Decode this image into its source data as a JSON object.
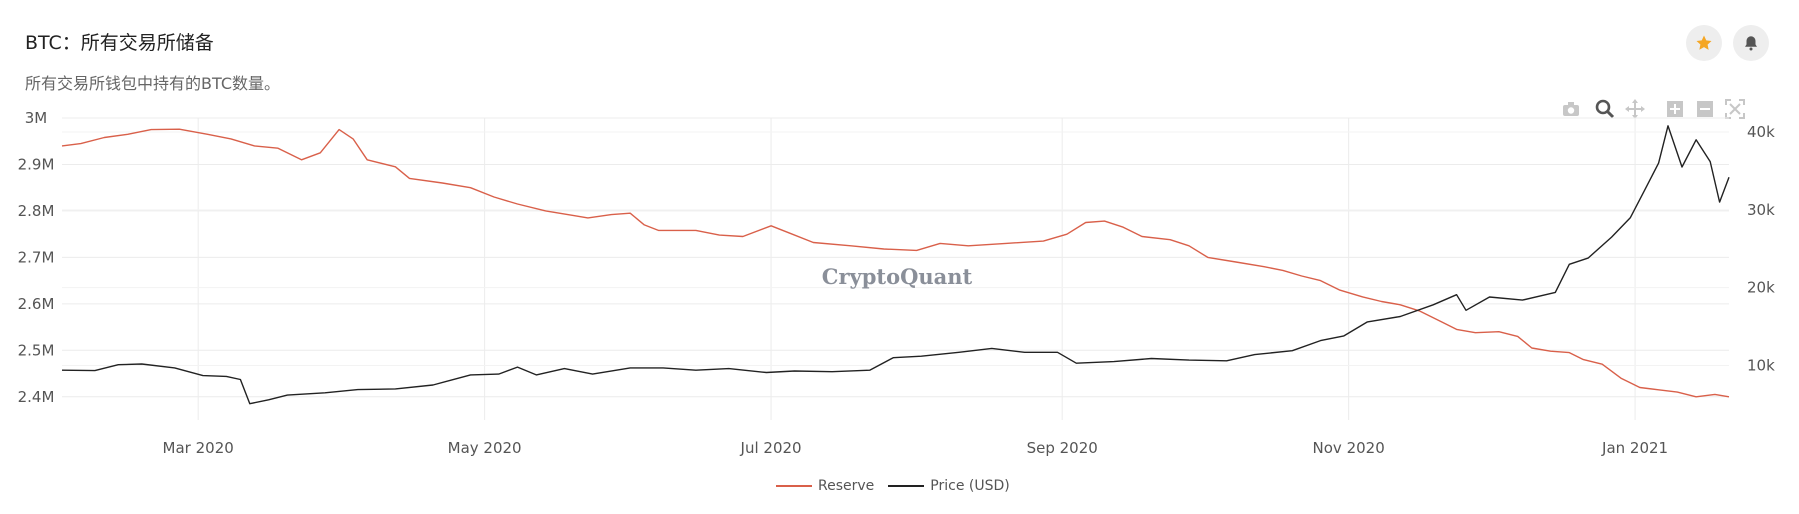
{
  "header": {
    "title": "BTC：所有交易所储备",
    "subtitle": "所有交易所钱包中持有的BTC数量。",
    "favorite_icon": "star-icon",
    "alert_icon": "bell-icon"
  },
  "toolbar": {
    "icons": [
      "camera-icon",
      "zoom-icon",
      "pan-icon",
      "zoom-in-icon",
      "zoom-out-icon",
      "autoscale-icon"
    ]
  },
  "watermark": "CryptoQuant",
  "colors": {
    "reserve": "#d9604a",
    "price": "#222222",
    "star": "#f5a623",
    "grid": "#ececec",
    "axis_text": "#555555"
  },
  "chart_data": {
    "type": "line",
    "title": "BTC：所有交易所储备",
    "x_start": "2020-02-01",
    "x_end": "2021-01-21",
    "x_ticks": [
      {
        "date": "2020-03-01",
        "label": "Mar 2020"
      },
      {
        "date": "2020-05-01",
        "label": "May 2020"
      },
      {
        "date": "2020-07-01",
        "label": "Jul 2020"
      },
      {
        "date": "2020-09-01",
        "label": "Sep 2020"
      },
      {
        "date": "2020-11-01",
        "label": "Nov 2020"
      },
      {
        "date": "2021-01-01",
        "label": "Jan 2021"
      }
    ],
    "y_left": {
      "label": "Reserve",
      "range": [
        2350000,
        3000000
      ],
      "ticks": [
        {
          "value": 2400000,
          "label": "2.4M"
        },
        {
          "value": 2500000,
          "label": "2.5M"
        },
        {
          "value": 2600000,
          "label": "2.6M"
        },
        {
          "value": 2700000,
          "label": "2.7M"
        },
        {
          "value": 2800000,
          "label": "2.8M"
        },
        {
          "value": 2900000,
          "label": "2.9M"
        },
        {
          "value": 3000000,
          "label": "3M"
        }
      ]
    },
    "y_right": {
      "label": "Price (USD)",
      "range": [
        3000,
        41800
      ],
      "ticks": [
        {
          "value": 10000,
          "label": "10k"
        },
        {
          "value": 20000,
          "label": "20k"
        },
        {
          "value": 30000,
          "label": "30k"
        },
        {
          "value": 40000,
          "label": "40k"
        }
      ]
    },
    "series": [
      {
        "name": "Reserve",
        "axis": "left",
        "points": [
          [
            "2020-02-01",
            2940000
          ],
          [
            "2020-02-05",
            2945000
          ],
          [
            "2020-02-10",
            2958000
          ],
          [
            "2020-02-15",
            2965000
          ],
          [
            "2020-02-20",
            2975000
          ],
          [
            "2020-02-26",
            2976000
          ],
          [
            "2020-03-03",
            2965000
          ],
          [
            "2020-03-08",
            2955000
          ],
          [
            "2020-03-13",
            2940000
          ],
          [
            "2020-03-18",
            2935000
          ],
          [
            "2020-03-23",
            2910000
          ],
          [
            "2020-03-27",
            2925000
          ],
          [
            "2020-03-31",
            2975000
          ],
          [
            "2020-04-03",
            2955000
          ],
          [
            "2020-04-06",
            2910000
          ],
          [
            "2020-04-12",
            2895000
          ],
          [
            "2020-04-15",
            2870000
          ],
          [
            "2020-04-22",
            2860000
          ],
          [
            "2020-04-28",
            2850000
          ],
          [
            "2020-05-03",
            2830000
          ],
          [
            "2020-05-08",
            2815000
          ],
          [
            "2020-05-14",
            2800000
          ],
          [
            "2020-05-20",
            2790000
          ],
          [
            "2020-05-23",
            2785000
          ],
          [
            "2020-05-28",
            2792000
          ],
          [
            "2020-06-01",
            2795000
          ],
          [
            "2020-06-04",
            2770000
          ],
          [
            "2020-06-07",
            2758000
          ],
          [
            "2020-06-15",
            2758000
          ],
          [
            "2020-06-20",
            2748000
          ],
          [
            "2020-06-25",
            2745000
          ],
          [
            "2020-07-01",
            2768000
          ],
          [
            "2020-07-05",
            2752000
          ],
          [
            "2020-07-10",
            2732000
          ],
          [
            "2020-07-18",
            2725000
          ],
          [
            "2020-07-25",
            2718000
          ],
          [
            "2020-08-01",
            2715000
          ],
          [
            "2020-08-06",
            2730000
          ],
          [
            "2020-08-12",
            2725000
          ],
          [
            "2020-08-20",
            2730000
          ],
          [
            "2020-08-28",
            2735000
          ],
          [
            "2020-09-02",
            2750000
          ],
          [
            "2020-09-06",
            2775000
          ],
          [
            "2020-09-10",
            2778000
          ],
          [
            "2020-09-14",
            2765000
          ],
          [
            "2020-09-18",
            2745000
          ],
          [
            "2020-09-24",
            2738000
          ],
          [
            "2020-09-28",
            2725000
          ],
          [
            "2020-10-02",
            2700000
          ],
          [
            "2020-10-08",
            2690000
          ],
          [
            "2020-10-14",
            2680000
          ],
          [
            "2020-10-18",
            2672000
          ],
          [
            "2020-10-22",
            2660000
          ],
          [
            "2020-10-26",
            2650000
          ],
          [
            "2020-10-30",
            2630000
          ],
          [
            "2020-11-04",
            2615000
          ],
          [
            "2020-11-08",
            2605000
          ],
          [
            "2020-11-12",
            2598000
          ],
          [
            "2020-11-16",
            2585000
          ],
          [
            "2020-11-21",
            2560000
          ],
          [
            "2020-11-24",
            2545000
          ],
          [
            "2020-11-28",
            2538000
          ],
          [
            "2020-12-03",
            2540000
          ],
          [
            "2020-12-07",
            2530000
          ],
          [
            "2020-12-10",
            2505000
          ],
          [
            "2020-12-14",
            2498000
          ],
          [
            "2020-12-18",
            2495000
          ],
          [
            "2020-12-21",
            2480000
          ],
          [
            "2020-12-25",
            2470000
          ],
          [
            "2020-12-29",
            2440000
          ],
          [
            "2021-01-02",
            2420000
          ],
          [
            "2021-01-06",
            2415000
          ],
          [
            "2021-01-10",
            2410000
          ],
          [
            "2021-01-14",
            2400000
          ],
          [
            "2021-01-18",
            2405000
          ],
          [
            "2021-01-21",
            2400000
          ]
        ]
      },
      {
        "name": "Price (USD)",
        "axis": "right",
        "points": [
          [
            "2020-02-01",
            9400
          ],
          [
            "2020-02-08",
            9350
          ],
          [
            "2020-02-13",
            10100
          ],
          [
            "2020-02-18",
            10200
          ],
          [
            "2020-02-25",
            9700
          ],
          [
            "2020-03-02",
            8700
          ],
          [
            "2020-03-07",
            8600
          ],
          [
            "2020-03-10",
            8200
          ],
          [
            "2020-03-12",
            5100
          ],
          [
            "2020-03-16",
            5600
          ],
          [
            "2020-03-20",
            6200
          ],
          [
            "2020-03-28",
            6500
          ],
          [
            "2020-04-04",
            6900
          ],
          [
            "2020-04-12",
            7000
          ],
          [
            "2020-04-20",
            7500
          ],
          [
            "2020-04-28",
            8800
          ],
          [
            "2020-05-04",
            8900
          ],
          [
            "2020-05-08",
            9800
          ],
          [
            "2020-05-12",
            8800
          ],
          [
            "2020-05-18",
            9600
          ],
          [
            "2020-05-24",
            8900
          ],
          [
            "2020-06-01",
            9700
          ],
          [
            "2020-06-08",
            9700
          ],
          [
            "2020-06-15",
            9400
          ],
          [
            "2020-06-22",
            9600
          ],
          [
            "2020-06-30",
            9100
          ],
          [
            "2020-07-06",
            9300
          ],
          [
            "2020-07-14",
            9200
          ],
          [
            "2020-07-22",
            9400
          ],
          [
            "2020-07-27",
            11000
          ],
          [
            "2020-08-02",
            11200
          ],
          [
            "2020-08-10",
            11700
          ],
          [
            "2020-08-17",
            12200
          ],
          [
            "2020-08-24",
            11700
          ],
          [
            "2020-08-31",
            11700
          ],
          [
            "2020-09-04",
            10300
          ],
          [
            "2020-09-12",
            10500
          ],
          [
            "2020-09-20",
            10900
          ],
          [
            "2020-09-28",
            10700
          ],
          [
            "2020-10-06",
            10600
          ],
          [
            "2020-10-12",
            11400
          ],
          [
            "2020-10-20",
            11900
          ],
          [
            "2020-10-26",
            13200
          ],
          [
            "2020-10-31",
            13800
          ],
          [
            "2020-11-05",
            15600
          ],
          [
            "2020-11-12",
            16300
          ],
          [
            "2020-11-19",
            17800
          ],
          [
            "2020-11-24",
            19100
          ],
          [
            "2020-11-26",
            17100
          ],
          [
            "2020-12-01",
            18800
          ],
          [
            "2020-12-08",
            18400
          ],
          [
            "2020-12-15",
            19400
          ],
          [
            "2020-12-18",
            23000
          ],
          [
            "2020-12-22",
            23800
          ],
          [
            "2020-12-27",
            26500
          ],
          [
            "2020-12-31",
            29000
          ],
          [
            "2021-01-03",
            32500
          ],
          [
            "2021-01-06",
            36000
          ],
          [
            "2021-01-08",
            40800
          ],
          [
            "2021-01-11",
            35500
          ],
          [
            "2021-01-14",
            39000
          ],
          [
            "2021-01-17",
            36200
          ],
          [
            "2021-01-19",
            31000
          ],
          [
            "2021-01-21",
            34200
          ]
        ]
      }
    ],
    "legend": [
      "Reserve",
      "Price (USD)"
    ]
  }
}
